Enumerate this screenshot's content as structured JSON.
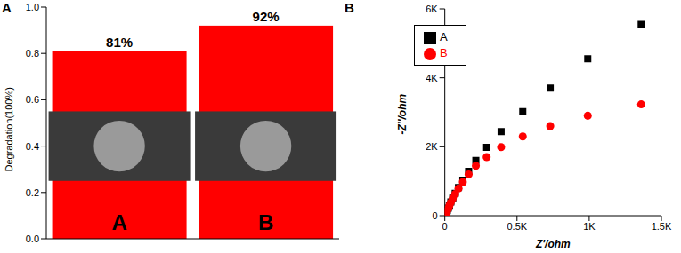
{
  "chart_data": [
    {
      "type": "bar",
      "title": "A",
      "y_label": "Degradation(100%)",
      "categories": [
        "A",
        "B"
      ],
      "values": [
        0.81,
        0.92
      ],
      "value_labels": [
        "81%",
        "92%"
      ],
      "data_labels": true,
      "color": "#ff0000",
      "ylim": [
        0,
        1.0
      ],
      "yticks": [
        {
          "value": 0,
          "label": "0.0"
        },
        {
          "value": 0.2,
          "label": "0.2"
        },
        {
          "value": 0.4,
          "label": "0.4"
        },
        {
          "value": 0.6,
          "label": "0.6"
        },
        {
          "value": 0.8,
          "label": "0.8"
        },
        {
          "value": 1.0,
          "label": "1.0"
        }
      ],
      "tick_labels": "y",
      "grid": false
    },
    {
      "type": "scatter",
      "title": "B",
      "x_label": "Z'/ohm",
      "y_label": "-Z''/ohm",
      "xlim": [
        0,
        1500
      ],
      "xticks": [
        0,
        {
          "value": 500,
          "label": "0.5K"
        },
        {
          "value": 1000,
          "label": "1K"
        },
        {
          "value": 1500,
          "label": "1.5K"
        }
      ],
      "ylim": [
        0,
        6000
      ],
      "yticks": [
        0,
        {
          "value": 2000,
          "label": "2K"
        },
        {
          "value": 4000,
          "label": "4K"
        },
        {
          "value": 6000,
          "label": "6K"
        }
      ],
      "legend": "upper left",
      "grid": false,
      "series": [
        {
          "name": "A",
          "color": "#000000",
          "marker": "square",
          "x": [
            1360,
            990,
            730,
            540,
            390,
            290,
            215,
            165,
            125,
            95,
            72,
            55,
            42,
            32,
            24,
            17,
            11,
            6
          ],
          "values": [
            5550,
            4550,
            3700,
            3020,
            2440,
            1980,
            1600,
            1290,
            1030,
            820,
            650,
            510,
            400,
            300,
            220,
            150,
            90,
            40
          ]
        },
        {
          "name": "B",
          "color": "#ff0000",
          "marker": "circle",
          "x": [
            1360,
            990,
            730,
            540,
            390,
            290,
            215,
            165,
            125,
            95,
            72,
            55,
            42,
            32,
            24,
            17,
            11,
            6
          ],
          "values": [
            3230,
            2900,
            2600,
            2300,
            1990,
            1700,
            1450,
            1200,
            980,
            790,
            630,
            500,
            390,
            295,
            215,
            145,
            88,
            38
          ]
        }
      ]
    }
  ]
}
